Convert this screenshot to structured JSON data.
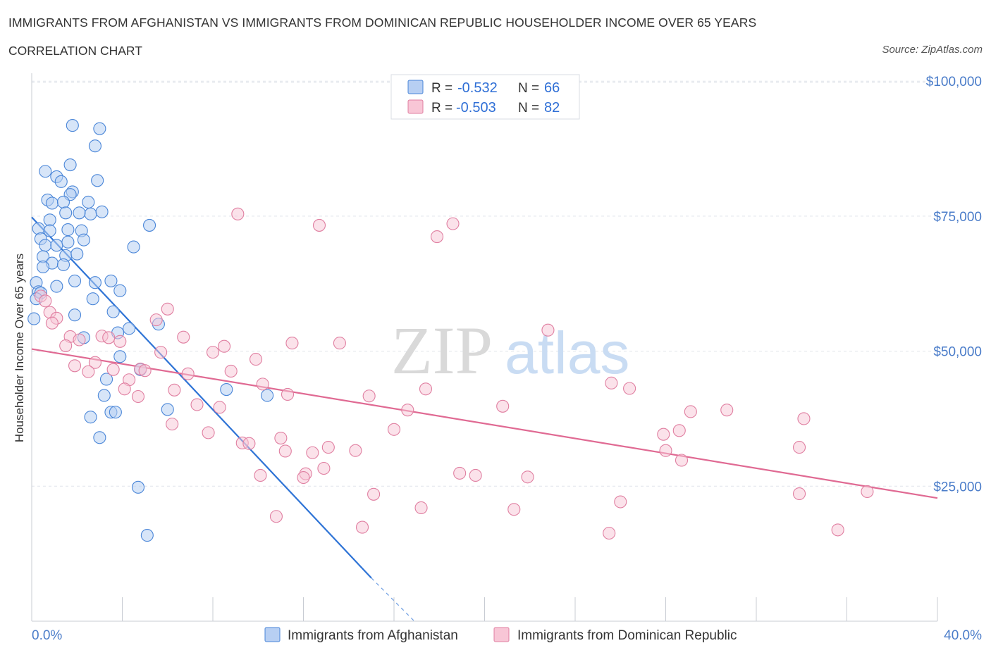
{
  "title": "IMMIGRANTS FROM AFGHANISTAN VS IMMIGRANTS FROM DOMINICAN REPUBLIC HOUSEHOLDER INCOME OVER 65 YEARS",
  "subtitle": "CORRELATION CHART",
  "source": "Source: ZipAtlas.com",
  "watermark": {
    "zip": "ZIP",
    "atlas": "atlas"
  },
  "colors": {
    "afghanistan_fill": "#b7cff3",
    "afghanistan_stroke": "#4a86d8",
    "afghanistan_line": "#2f74d6",
    "dominican_fill": "#f8c6d6",
    "dominican_stroke": "#e07fa1",
    "dominican_line": "#e06a93",
    "grid": "#dfe3ea",
    "tick_label": "#4a7cc9"
  },
  "legend": {
    "rows": [
      {
        "r_label": "R = ",
        "r_value": "-0.532",
        "n_label": "N = ",
        "n_value": "66"
      },
      {
        "r_label": "R = ",
        "r_value": "-0.503",
        "n_label": "N = ",
        "n_value": "82"
      }
    ]
  },
  "chart_data": {
    "type": "scatter",
    "xlabel": "",
    "ylabel": "Householder Income Over 65 years",
    "xlim": [
      0,
      40
    ],
    "ylim": [
      0,
      100000
    ],
    "x_tick_labels": [
      "0.0%",
      "40.0%"
    ],
    "y_ticks": [
      25000,
      50000,
      75000,
      100000
    ],
    "y_tick_labels": [
      "$25,000",
      "$50,000",
      "$75,000",
      "$100,000"
    ],
    "grid": true,
    "legend_placement": "top-center",
    "series": [
      {
        "name": "Immigrants from Afghanistan",
        "trend": {
          "x": [
            0.0,
            15.0
          ],
          "y": [
            74800,
            8000
          ],
          "dashed_extension_to": [
            16.9,
            0
          ]
        },
        "points": [
          [
            1.8,
            91800
          ],
          [
            3.0,
            91200
          ],
          [
            2.8,
            88000
          ],
          [
            1.7,
            84500
          ],
          [
            0.6,
            83300
          ],
          [
            1.1,
            82300
          ],
          [
            2.9,
            81600
          ],
          [
            1.3,
            81400
          ],
          [
            1.8,
            79500
          ],
          [
            0.7,
            78000
          ],
          [
            1.7,
            79000
          ],
          [
            0.9,
            77400
          ],
          [
            1.4,
            77600
          ],
          [
            2.5,
            77600
          ],
          [
            0.8,
            74300
          ],
          [
            1.5,
            75600
          ],
          [
            2.6,
            75400
          ],
          [
            3.1,
            75800
          ],
          [
            2.1,
            75600
          ],
          [
            5.2,
            73300
          ],
          [
            0.3,
            72700
          ],
          [
            0.8,
            72300
          ],
          [
            1.6,
            72500
          ],
          [
            2.2,
            72300
          ],
          [
            2.3,
            70600
          ],
          [
            0.4,
            70800
          ],
          [
            0.6,
            69600
          ],
          [
            1.1,
            69600
          ],
          [
            4.5,
            69300
          ],
          [
            1.5,
            67700
          ],
          [
            0.5,
            67500
          ],
          [
            0.9,
            66300
          ],
          [
            1.4,
            66000
          ],
          [
            0.5,
            65600
          ],
          [
            1.9,
            63000
          ],
          [
            3.5,
            63000
          ],
          [
            0.2,
            62700
          ],
          [
            2.8,
            62700
          ],
          [
            3.9,
            61200
          ],
          [
            0.3,
            61000
          ],
          [
            0.4,
            60800
          ],
          [
            2.7,
            59700
          ],
          [
            3.6,
            57300
          ],
          [
            1.9,
            56700
          ],
          [
            0.1,
            56000
          ],
          [
            5.6,
            55000
          ],
          [
            4.3,
            54200
          ],
          [
            3.8,
            53400
          ],
          [
            2.3,
            52500
          ],
          [
            3.9,
            49000
          ],
          [
            4.8,
            46600
          ],
          [
            3.3,
            44800
          ],
          [
            8.6,
            42900
          ],
          [
            3.2,
            41800
          ],
          [
            10.4,
            41800
          ],
          [
            6.0,
            39200
          ],
          [
            3.5,
            38700
          ],
          [
            3.7,
            38700
          ],
          [
            2.6,
            37800
          ],
          [
            3.0,
            34000
          ],
          [
            4.7,
            24800
          ],
          [
            5.1,
            15900
          ],
          [
            1.1,
            62000
          ],
          [
            2.0,
            68000
          ],
          [
            0.2,
            59700
          ],
          [
            1.6,
            70200
          ]
        ]
      },
      {
        "name": "Immigrants from Dominican Republic",
        "trend": {
          "x": [
            0.0,
            40.0
          ],
          "y": [
            50400,
            22800
          ]
        },
        "points": [
          [
            9.1,
            75400
          ],
          [
            12.7,
            73300
          ],
          [
            18.6,
            73600
          ],
          [
            17.9,
            71200
          ],
          [
            0.4,
            60200
          ],
          [
            0.6,
            59300
          ],
          [
            6.0,
            57800
          ],
          [
            0.8,
            57200
          ],
          [
            1.1,
            56100
          ],
          [
            5.5,
            55800
          ],
          [
            0.9,
            55200
          ],
          [
            22.8,
            53900
          ],
          [
            3.1,
            52800
          ],
          [
            1.7,
            52700
          ],
          [
            3.4,
            52500
          ],
          [
            2.1,
            52100
          ],
          [
            6.7,
            52600
          ],
          [
            3.9,
            51800
          ],
          [
            11.5,
            51500
          ],
          [
            13.6,
            51500
          ],
          [
            1.5,
            51000
          ],
          [
            8.5,
            50900
          ],
          [
            8.0,
            49800
          ],
          [
            5.7,
            49800
          ],
          [
            9.9,
            48500
          ],
          [
            2.8,
            47900
          ],
          [
            1.9,
            47300
          ],
          [
            3.6,
            46600
          ],
          [
            4.8,
            46700
          ],
          [
            5.0,
            46400
          ],
          [
            2.5,
            46200
          ],
          [
            6.9,
            45800
          ],
          [
            8.8,
            46300
          ],
          [
            4.3,
            44700
          ],
          [
            10.2,
            43900
          ],
          [
            25.6,
            44100
          ],
          [
            4.1,
            43000
          ],
          [
            6.3,
            42800
          ],
          [
            17.4,
            43000
          ],
          [
            26.4,
            43100
          ],
          [
            11.3,
            42000
          ],
          [
            14.9,
            41700
          ],
          [
            4.7,
            41600
          ],
          [
            7.3,
            40100
          ],
          [
            8.3,
            39600
          ],
          [
            20.8,
            39800
          ],
          [
            16.6,
            39100
          ],
          [
            30.7,
            39100
          ],
          [
            29.1,
            38800
          ],
          [
            34.1,
            37500
          ],
          [
            6.2,
            36500
          ],
          [
            16.0,
            35500
          ],
          [
            28.6,
            35300
          ],
          [
            7.8,
            34900
          ],
          [
            27.9,
            34600
          ],
          [
            11.0,
            33900
          ],
          [
            9.3,
            33000
          ],
          [
            9.6,
            32900
          ],
          [
            13.1,
            32200
          ],
          [
            33.9,
            32200
          ],
          [
            11.2,
            31500
          ],
          [
            12.4,
            31200
          ],
          [
            14.3,
            31600
          ],
          [
            28.0,
            31600
          ],
          [
            28.7,
            29800
          ],
          [
            12.9,
            28300
          ],
          [
            12.1,
            27300
          ],
          [
            18.9,
            27400
          ],
          [
            19.6,
            27000
          ],
          [
            10.1,
            27000
          ],
          [
            12.0,
            26600
          ],
          [
            21.9,
            26700
          ],
          [
            15.1,
            23500
          ],
          [
            33.9,
            23600
          ],
          [
            36.9,
            24000
          ],
          [
            17.2,
            21000
          ],
          [
            26.0,
            22100
          ],
          [
            21.3,
            20700
          ],
          [
            10.8,
            19400
          ],
          [
            14.6,
            17400
          ],
          [
            25.5,
            16300
          ],
          [
            35.6,
            16900
          ]
        ]
      }
    ]
  }
}
